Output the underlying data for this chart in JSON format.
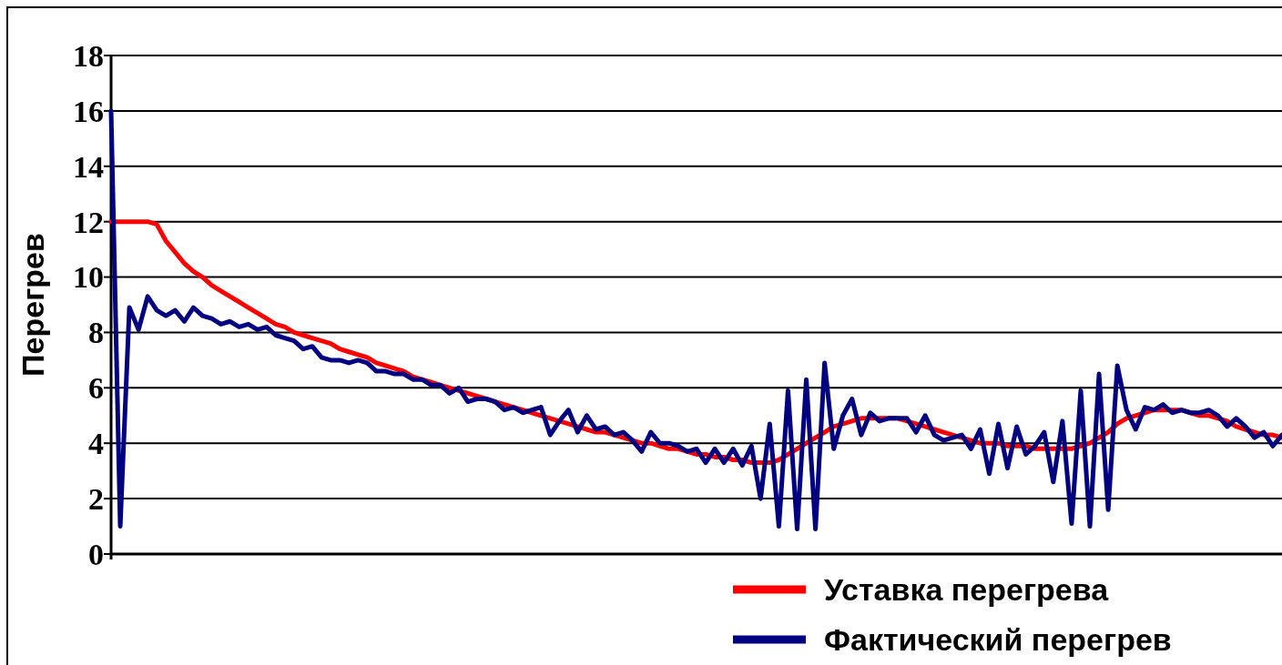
{
  "chart_data": {
    "type": "line",
    "ylabel": "Перегрев",
    "ylim": [
      0,
      18
    ],
    "yticks": [
      0,
      2,
      4,
      6,
      8,
      10,
      12,
      14,
      16,
      18
    ],
    "grid": "y",
    "tick_labels": "y",
    "legend": "bottom right",
    "line_style": "solid",
    "categories": [
      null,
      null,
      null,
      null,
      null,
      null,
      null,
      null,
      null,
      null,
      null,
      null,
      null,
      null,
      null,
      null,
      null,
      null,
      null,
      null,
      null,
      null,
      null,
      null,
      null,
      null,
      null,
      null,
      null,
      null,
      null,
      null,
      null,
      null,
      null,
      null,
      null,
      null,
      null,
      null,
      null,
      null,
      null,
      null,
      null,
      null,
      null,
      null,
      null,
      null,
      null,
      null,
      null,
      null,
      null,
      null,
      null,
      null,
      null,
      null,
      null,
      null,
      null,
      null,
      null,
      null,
      null,
      null,
      null,
      null,
      null,
      null,
      null,
      null,
      null,
      null,
      null,
      null,
      null,
      null,
      null,
      null,
      null,
      null,
      null,
      null,
      null,
      null,
      null,
      null,
      null,
      null,
      null,
      null,
      null,
      null,
      null,
      null,
      null,
      null,
      null,
      null,
      null,
      null,
      null,
      null,
      null,
      null,
      null,
      null,
      null,
      null,
      null,
      null,
      null,
      null,
      null,
      null,
      null,
      null,
      null,
      null,
      null,
      null,
      null,
      null,
      null,
      null,
      null
    ],
    "series": [
      {
        "name": "Уставка перегрева",
        "color": "#ff0000",
        "values": [
          12,
          12,
          12,
          12,
          12,
          11.9,
          11.3,
          10.9,
          10.5,
          10.2,
          10.0,
          9.7,
          9.5,
          9.3,
          9.1,
          8.9,
          8.7,
          8.5,
          8.3,
          8.2,
          8.0,
          7.9,
          7.8,
          7.7,
          7.6,
          7.4,
          7.3,
          7.2,
          7.1,
          6.9,
          6.8,
          6.7,
          6.6,
          6.4,
          6.3,
          6.2,
          6.1,
          6.0,
          5.9,
          5.8,
          5.7,
          5.6,
          5.5,
          5.4,
          5.3,
          5.2,
          5.1,
          5.0,
          4.9,
          4.8,
          4.7,
          4.6,
          4.5,
          4.4,
          4.4,
          4.3,
          4.2,
          4.1,
          4.0,
          4.0,
          3.9,
          3.8,
          3.8,
          3.7,
          3.6,
          3.6,
          3.5,
          3.5,
          3.4,
          3.4,
          3.3,
          3.3,
          3.3,
          3.4,
          3.6,
          3.8,
          4.0,
          4.2,
          4.4,
          4.6,
          4.7,
          4.8,
          4.9,
          4.9,
          4.9,
          4.9,
          4.9,
          4.8,
          4.7,
          4.6,
          4.5,
          4.4,
          4.3,
          4.2,
          4.1,
          4.0,
          4.0,
          4.0,
          3.9,
          3.9,
          3.9,
          3.8,
          3.8,
          3.8,
          3.8,
          3.8,
          3.9,
          4.0,
          4.2,
          4.4,
          4.7,
          4.9,
          5.0,
          5.1,
          5.2,
          5.2,
          5.2,
          5.2,
          5.1,
          5.0,
          5.0,
          4.9,
          4.8,
          4.6,
          4.5,
          4.4,
          4.3,
          4.3,
          4.2
        ]
      },
      {
        "name": "Фактический перегрев",
        "color": "#000080",
        "values": [
          16.0,
          1.0,
          8.9,
          8.1,
          9.3,
          8.8,
          8.6,
          8.8,
          8.4,
          8.9,
          8.6,
          8.5,
          8.3,
          8.4,
          8.2,
          8.3,
          8.1,
          8.2,
          7.9,
          7.8,
          7.7,
          7.4,
          7.5,
          7.1,
          7.0,
          7.0,
          6.9,
          7.0,
          6.9,
          6.6,
          6.6,
          6.5,
          6.5,
          6.3,
          6.3,
          6.1,
          6.1,
          5.8,
          6.0,
          5.5,
          5.6,
          5.6,
          5.5,
          5.2,
          5.3,
          5.1,
          5.2,
          5.3,
          4.3,
          4.8,
          5.2,
          4.4,
          5.0,
          4.5,
          4.6,
          4.3,
          4.4,
          4.1,
          3.7,
          4.4,
          4.0,
          4.0,
          3.9,
          3.7,
          3.8,
          3.3,
          3.8,
          3.3,
          3.8,
          3.2,
          3.9,
          2.0,
          4.7,
          1.0,
          5.9,
          0.9,
          6.3,
          0.9,
          6.9,
          3.8,
          5.0,
          5.6,
          4.3,
          5.1,
          4.8,
          4.9,
          4.9,
          4.9,
          4.4,
          5.0,
          4.3,
          4.1,
          4.2,
          4.3,
          3.8,
          4.5,
          2.9,
          4.7,
          3.1,
          4.6,
          3.6,
          3.9,
          4.4,
          2.6,
          4.8,
          1.1,
          5.9,
          1.0,
          6.5,
          1.6,
          6.8,
          5.2,
          4.5,
          5.3,
          5.2,
          5.4,
          5.1,
          5.2,
          5.1,
          5.1,
          5.2,
          5.0,
          4.6,
          4.9,
          4.6,
          4.2,
          4.4,
          3.9,
          4.3
        ]
      }
    ]
  }
}
